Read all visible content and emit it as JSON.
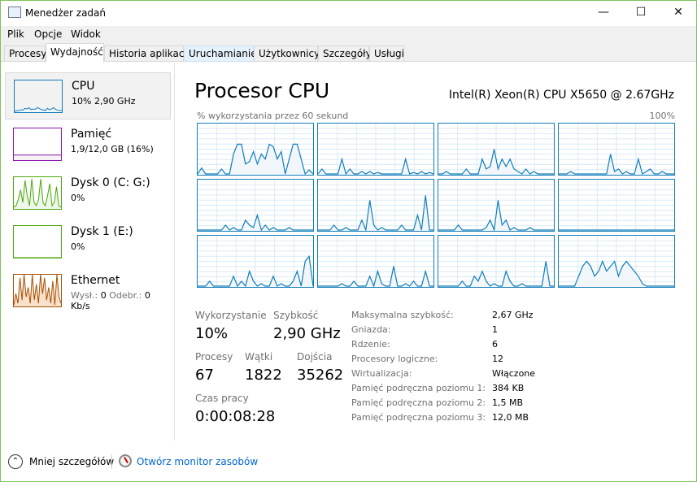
{
  "window": {
    "title": "Menedżer zadań",
    "controls": [
      "—",
      "☐",
      "✕"
    ]
  },
  "menu": [
    "Plik",
    "Opcje",
    "Widok"
  ],
  "tabs": [
    "Procesy",
    "Wydajność",
    "Historia aplikacji",
    "Uruchamianie",
    "Użytkownicy",
    "Szczegóły",
    "Usługi"
  ],
  "active_tab": "Wydajność",
  "sidebar": [
    {
      "title": "CPU",
      "sub": "10% 2,90 GHz",
      "color": "#117dbb"
    },
    {
      "title": "Pamięć",
      "sub": "1,9/12,0 GB (16%)",
      "color": "#8b12ae"
    },
    {
      "title": "Dysk 0 (C: G:)",
      "sub": "0%",
      "color": "#4da60c"
    },
    {
      "title": "Dysk 1 (E:)",
      "sub": "0%",
      "color": "#4da60c"
    },
    {
      "title": "Ethernet",
      "sub_label1": "Wysł.:",
      "sub_val1": "0",
      "sub_label2": "Odebr.:",
      "sub_val2": "0 Kb/s",
      "color": "#a74f01"
    }
  ],
  "main": {
    "title": "Procesor CPU",
    "model": "Intel(R) Xeon(R) CPU X5650 @ 2.67GHz",
    "graph_label": "% wykorzystania przez 60 sekund",
    "graph_max": "100%",
    "cores": [
      [
        0,
        12,
        0,
        0,
        0,
        0,
        10,
        0,
        0,
        40,
        60,
        60,
        20,
        25,
        45,
        20,
        40,
        30,
        60,
        55,
        30,
        45,
        0,
        30,
        60,
        60,
        30,
        0,
        8,
        0
      ],
      [
        0,
        10,
        0,
        0,
        0,
        0,
        30,
        0,
        10,
        0,
        0,
        5,
        0,
        5,
        0,
        3,
        0,
        0,
        0,
        0,
        0,
        0,
        30,
        0,
        3,
        0,
        5,
        0,
        3,
        0
      ],
      [
        0,
        0,
        5,
        0,
        0,
        0,
        0,
        10,
        0,
        0,
        0,
        30,
        10,
        15,
        50,
        10,
        30,
        15,
        30,
        10,
        5,
        0,
        10,
        0,
        5,
        0,
        0,
        0,
        0,
        0
      ],
      [
        0,
        0,
        0,
        5,
        0,
        0,
        0,
        0,
        0,
        0,
        0,
        0,
        0,
        40,
        5,
        10,
        0,
        5,
        0,
        0,
        30,
        0,
        5,
        10,
        0,
        0,
        5,
        0,
        0,
        0
      ],
      [
        0,
        0,
        0,
        0,
        0,
        0,
        0,
        10,
        0,
        5,
        0,
        0,
        20,
        10,
        5,
        30,
        0,
        10,
        0,
        5,
        0,
        0,
        0,
        5,
        0,
        0,
        0,
        0,
        0,
        0
      ],
      [
        0,
        0,
        0,
        0,
        10,
        0,
        0,
        5,
        0,
        0,
        0,
        20,
        0,
        60,
        10,
        0,
        5,
        0,
        0,
        0,
        0,
        10,
        0,
        0,
        0,
        30,
        0,
        70,
        0,
        0
      ],
      [
        0,
        0,
        0,
        0,
        0,
        10,
        0,
        0,
        0,
        0,
        0,
        0,
        5,
        20,
        0,
        60,
        10,
        20,
        0,
        5,
        0,
        0,
        0,
        5,
        0,
        0,
        0,
        0,
        0,
        0
      ],
      [
        0,
        0,
        0,
        0,
        0,
        0,
        0,
        0,
        0,
        0,
        0,
        0,
        0,
        0,
        0,
        0,
        0,
        0,
        0,
        0,
        0,
        0,
        0,
        0,
        0,
        0,
        0,
        0,
        0,
        0
      ],
      [
        0,
        0,
        0,
        10,
        0,
        0,
        0,
        0,
        0,
        20,
        0,
        10,
        0,
        30,
        10,
        0,
        5,
        0,
        0,
        20,
        0,
        5,
        0,
        0,
        10,
        30,
        0,
        50,
        60,
        0
      ],
      [
        0,
        0,
        0,
        0,
        0,
        0,
        5,
        0,
        0,
        10,
        0,
        0,
        0,
        20,
        0,
        30,
        5,
        0,
        0,
        40,
        0,
        0,
        5,
        0,
        10,
        0,
        0,
        30,
        0,
        0
      ],
      [
        0,
        0,
        0,
        0,
        0,
        0,
        10,
        0,
        0,
        20,
        10,
        30,
        10,
        0,
        5,
        0,
        0,
        30,
        10,
        0,
        0,
        5,
        0,
        0,
        0,
        0,
        0,
        50,
        0,
        0
      ],
      [
        0,
        0,
        0,
        0,
        0,
        20,
        40,
        50,
        40,
        20,
        30,
        50,
        30,
        40,
        50,
        20,
        40,
        50,
        40,
        30,
        20,
        5,
        0,
        0,
        0,
        0,
        0,
        0,
        0,
        0
      ]
    ],
    "stats": {
      "util_label": "Wykorzystanie",
      "util": "10%",
      "speed_label": "Szybkość",
      "speed": "2,90 GHz",
      "proc_label": "Procesy",
      "proc": "67",
      "threads_label": "Wątki",
      "threads": "1822",
      "handles_label": "Dojścia",
      "handles": "35262",
      "uptime_label": "Czas pracy",
      "uptime": "0:00:08:28"
    },
    "specs": [
      {
        "k": "Maksymalna szybkość:",
        "v": "2,67 GHz"
      },
      {
        "k": "Gniazda:",
        "v": "1"
      },
      {
        "k": "Rdzenie:",
        "v": "6"
      },
      {
        "k": "Procesory logiczne:",
        "v": "12"
      },
      {
        "k": "Wirtualizacja:",
        "v": "Włączone"
      },
      {
        "k": "Pamięć podręczna poziomu 1:",
        "v": "384 KB"
      },
      {
        "k": "Pamięć podręczna poziomu 2:",
        "v": "1,5 MB"
      },
      {
        "k": "Pamięć podręczna poziomu 3:",
        "v": "12,0 MB"
      }
    ]
  },
  "footer": {
    "less": "Mniej szczegółów",
    "monitor": "Otwórz monitor zasobów"
  }
}
